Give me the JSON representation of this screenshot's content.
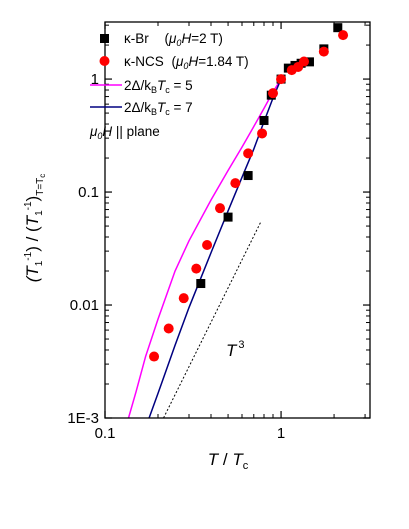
{
  "chart_data": {
    "type": "scatter",
    "x_scale": "log",
    "y_scale": "log",
    "xlim": [
      0.1,
      3.2
    ],
    "ylim": [
      0.001,
      3.2
    ],
    "x_ticks": [
      {
        "value": 0.1,
        "label": "0.1"
      },
      {
        "value": 1,
        "label": "1"
      }
    ],
    "y_ticks": [
      {
        "value": 0.001,
        "label": "1E-3"
      },
      {
        "value": 0.01,
        "label": "0.01"
      },
      {
        "value": 0.1,
        "label": "0.1"
      },
      {
        "value": 1,
        "label": "1"
      }
    ],
    "xlabel_parts": {
      "t": "T",
      "sep": " / ",
      "base": "T",
      "sub": "c"
    },
    "ylabel_parts": {
      "p1": "(T",
      "sub1": "1",
      "sup1": "-1",
      "p2": ") / (T",
      "sub2": "1",
      "sup2": "-1",
      "p3": ")",
      "sub3": "T=T",
      "sub3c": "c"
    },
    "legend": {
      "position": "top-left",
      "entries": [
        {
          "key": "kbr",
          "marker": "square",
          "color": "#000000",
          "name": "κ-Br",
          "field": "(μ0H=2 T)"
        },
        {
          "key": "kncs",
          "marker": "circle",
          "color": "#ff0000",
          "name": "κ-NCS",
          "field": "(μ0H=1.84 T)"
        },
        {
          "key": "fit5",
          "marker": "line",
          "color": "#ff00ff",
          "name": "2Δ/kBTc = 5"
        },
        {
          "key": "fit7",
          "marker": "line",
          "color": "#000080",
          "name": "2Δ/kBTc = 7"
        }
      ],
      "field_note": "μ0H || plane"
    },
    "annotation": {
      "text": "T",
      "sup": "3"
    },
    "series": [
      {
        "name": "κ-Br",
        "marker": "square",
        "color": "#000000",
        "x": [
          0.35,
          0.5,
          0.65,
          0.8,
          0.88,
          1.0,
          1.1,
          1.2,
          1.3,
          1.45,
          1.75,
          2.1
        ],
        "y": [
          0.0155,
          0.06,
          0.14,
          0.43,
          0.72,
          1.0,
          1.25,
          1.32,
          1.38,
          1.42,
          1.85,
          2.85
        ]
      },
      {
        "name": "κ-NCS",
        "marker": "circle",
        "color": "#ff0000",
        "x": [
          0.19,
          0.23,
          0.28,
          0.33,
          0.38,
          0.45,
          0.55,
          0.65,
          0.78,
          0.9,
          1.0,
          1.15,
          1.25,
          1.35,
          1.75,
          2.25
        ],
        "y": [
          0.0035,
          0.0062,
          0.0115,
          0.021,
          0.034,
          0.072,
          0.12,
          0.22,
          0.33,
          0.75,
          1.0,
          1.2,
          1.28,
          1.43,
          1.75,
          2.45
        ]
      },
      {
        "name": "2Δ/kBTc = 5",
        "type": "line",
        "color": "#ff00ff",
        "x": [
          0.136,
          0.15,
          0.17,
          0.2,
          0.25,
          0.3,
          0.4,
          0.5,
          0.6,
          0.7,
          0.8,
          0.9,
          1.0
        ],
        "y": [
          0.001,
          0.0017,
          0.0035,
          0.0075,
          0.02,
          0.037,
          0.085,
          0.155,
          0.25,
          0.38,
          0.55,
          0.77,
          1.0
        ]
      },
      {
        "name": "2Δ/kBTc = 7",
        "type": "line",
        "color": "#000080",
        "x": [
          0.178,
          0.2,
          0.25,
          0.3,
          0.4,
          0.5,
          0.6,
          0.7,
          0.8,
          0.9,
          1.0
        ],
        "y": [
          0.001,
          0.00165,
          0.0044,
          0.0095,
          0.029,
          0.068,
          0.135,
          0.24,
          0.42,
          0.68,
          1.0
        ]
      },
      {
        "name": "T^3 guide",
        "type": "line",
        "style": "dotted",
        "color": "#000000",
        "x": [
          0.215,
          0.77
        ],
        "y": [
          0.001,
          0.055
        ]
      }
    ]
  }
}
